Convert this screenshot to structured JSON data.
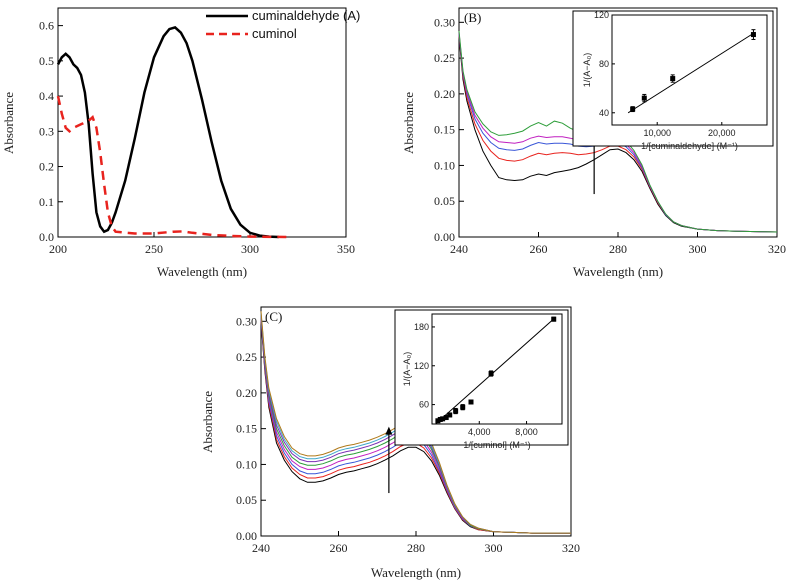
{
  "chart_data": [
    {
      "panel": "A",
      "type": "line",
      "xlabel": "Wavelength (nm)",
      "ylabel": "Absorbance",
      "xlim": [
        200,
        350
      ],
      "ylim": [
        0,
        0.65
      ],
      "xticks": [
        200,
        250,
        300,
        350
      ],
      "yticks": [
        0.0,
        0.1,
        0.2,
        0.3,
        0.4,
        0.5,
        0.6
      ],
      "legend_position": "top-right",
      "series": [
        {
          "name": "cuminaldehyde (A)",
          "color": "#000000",
          "style": "solid",
          "x": [
            200,
            202,
            204,
            206,
            208,
            210,
            212,
            214,
            216,
            218,
            220,
            222,
            224,
            226,
            228,
            230,
            235,
            240,
            245,
            250,
            255,
            258,
            261,
            264,
            267,
            270,
            275,
            280,
            285,
            290,
            295,
            300,
            305,
            310,
            315
          ],
          "y": [
            0.49,
            0.51,
            0.52,
            0.51,
            0.49,
            0.48,
            0.46,
            0.41,
            0.32,
            0.18,
            0.07,
            0.03,
            0.015,
            0.02,
            0.04,
            0.07,
            0.16,
            0.28,
            0.41,
            0.51,
            0.57,
            0.59,
            0.595,
            0.58,
            0.55,
            0.5,
            0.39,
            0.27,
            0.16,
            0.08,
            0.035,
            0.012,
            0.004,
            0.001,
            0.0
          ]
        },
        {
          "name": "cuminol",
          "color": "#e8231e",
          "style": "dashed",
          "x": [
            200,
            202,
            204,
            206,
            208,
            212,
            216,
            218,
            220,
            222,
            224,
            226,
            228,
            230,
            240,
            250,
            260,
            265,
            270,
            280,
            290,
            300,
            320
          ],
          "y": [
            0.4,
            0.35,
            0.31,
            0.3,
            0.31,
            0.32,
            0.33,
            0.34,
            0.31,
            0.24,
            0.15,
            0.07,
            0.03,
            0.015,
            0.01,
            0.01,
            0.015,
            0.016,
            0.012,
            0.006,
            0.003,
            0.001,
            0.0
          ]
        }
      ]
    },
    {
      "panel": "B",
      "type": "line",
      "xlabel": "Wavelength (nm)",
      "ylabel": "Absorbance",
      "xlim": [
        240,
        320
      ],
      "ylim": [
        0,
        0.32
      ],
      "xticks": [
        240,
        260,
        280,
        300,
        320
      ],
      "yticks": [
        0.0,
        0.05,
        0.1,
        0.15,
        0.2,
        0.25,
        0.3
      ],
      "x": [
        240,
        241,
        242,
        244,
        246,
        248,
        250,
        252,
        254,
        256,
        258,
        260,
        262,
        264,
        266,
        268,
        270,
        272,
        274,
        276,
        278,
        280,
        282,
        284,
        286,
        288,
        290,
        292,
        294,
        296,
        300,
        305,
        310,
        320
      ],
      "series": [
        {
          "color": "#000000",
          "y": [
            0.28,
            0.22,
            0.19,
            0.15,
            0.12,
            0.1,
            0.083,
            0.08,
            0.079,
            0.08,
            0.085,
            0.088,
            0.086,
            0.09,
            0.092,
            0.094,
            0.097,
            0.102,
            0.108,
            0.115,
            0.122,
            0.123,
            0.118,
            0.108,
            0.092,
            0.068,
            0.046,
            0.03,
            0.02,
            0.015,
            0.011,
            0.009,
            0.008,
            0.007
          ]
        },
        {
          "color": "#e8231e",
          "y": [
            0.282,
            0.225,
            0.195,
            0.158,
            0.135,
            0.12,
            0.11,
            0.107,
            0.106,
            0.108,
            0.113,
            0.117,
            0.115,
            0.117,
            0.118,
            0.117,
            0.115,
            0.116,
            0.118,
            0.122,
            0.127,
            0.127,
            0.122,
            0.112,
            0.095,
            0.07,
            0.048,
            0.031,
            0.021,
            0.016,
            0.011,
            0.009,
            0.008,
            0.007
          ]
        },
        {
          "color": "#3a57d8",
          "y": [
            0.284,
            0.228,
            0.2,
            0.165,
            0.145,
            0.132,
            0.124,
            0.122,
            0.121,
            0.123,
            0.128,
            0.132,
            0.13,
            0.131,
            0.131,
            0.13,
            0.127,
            0.126,
            0.127,
            0.129,
            0.133,
            0.132,
            0.126,
            0.115,
            0.097,
            0.071,
            0.049,
            0.031,
            0.021,
            0.016,
            0.011,
            0.009,
            0.008,
            0.007
          ]
        },
        {
          "color": "#c01fc0",
          "y": [
            0.286,
            0.23,
            0.203,
            0.17,
            0.152,
            0.14,
            0.133,
            0.132,
            0.131,
            0.133,
            0.138,
            0.141,
            0.139,
            0.14,
            0.14,
            0.138,
            0.135,
            0.134,
            0.134,
            0.136,
            0.139,
            0.137,
            0.13,
            0.118,
            0.099,
            0.072,
            0.049,
            0.032,
            0.021,
            0.016,
            0.011,
            0.009,
            0.008,
            0.007
          ]
        },
        {
          "color": "#2e9e3a",
          "y": [
            0.288,
            0.232,
            0.206,
            0.175,
            0.158,
            0.147,
            0.142,
            0.143,
            0.145,
            0.148,
            0.155,
            0.16,
            0.155,
            0.162,
            0.159,
            0.152,
            0.147,
            0.144,
            0.143,
            0.144,
            0.146,
            0.142,
            0.134,
            0.121,
            0.101,
            0.073,
            0.05,
            0.032,
            0.021,
            0.016,
            0.011,
            0.009,
            0.008,
            0.007
          ]
        }
      ],
      "annotation": {
        "type": "arrow-up",
        "x": 274,
        "y_from": 0.06,
        "y_to": 0.145
      },
      "inset": {
        "type": "scatter",
        "xlabel": "1/[cuminaldehyde] (M⁻¹)",
        "ylabel": "1/(A−A₀)",
        "xlim": [
          3000,
          27000
        ],
        "ylim": [
          30,
          120
        ],
        "xticks": [
          {
            "value": 10000,
            "label": "10,000"
          },
          {
            "value": 20000,
            "label": "20,000"
          }
        ],
        "yticks": [
          40,
          80,
          120
        ],
        "points": [
          {
            "x": 6200,
            "y": 43,
            "err": 2
          },
          {
            "x": 8000,
            "y": 52,
            "err": 3
          },
          {
            "x": 12400,
            "y": 68,
            "err": 3
          },
          {
            "x": 24900,
            "y": 104,
            "err": 4
          }
        ],
        "fit": {
          "x": [
            5500,
            25200
          ],
          "y": [
            40,
            106
          ]
        }
      }
    },
    {
      "panel": "C",
      "type": "line",
      "xlabel": "Wavelength (nm)",
      "ylabel": "Absorbance",
      "xlim": [
        240,
        320
      ],
      "ylim": [
        0,
        0.32
      ],
      "xticks": [
        240,
        260,
        280,
        300,
        320
      ],
      "yticks": [
        0.0,
        0.05,
        0.1,
        0.15,
        0.2,
        0.25,
        0.3
      ],
      "x": [
        240,
        241,
        242,
        244,
        246,
        248,
        250,
        252,
        254,
        256,
        258,
        260,
        262,
        264,
        266,
        268,
        270,
        272,
        274,
        276,
        278,
        280,
        282,
        284,
        286,
        288,
        290,
        292,
        294,
        296,
        300,
        305,
        310,
        320
      ],
      "series": [
        {
          "color": "#000000",
          "y": [
            0.3,
            0.23,
            0.18,
            0.13,
            0.106,
            0.09,
            0.08,
            0.075,
            0.075,
            0.077,
            0.081,
            0.086,
            0.089,
            0.091,
            0.094,
            0.097,
            0.101,
            0.106,
            0.112,
            0.119,
            0.124,
            0.124,
            0.118,
            0.105,
            0.085,
            0.06,
            0.038,
            0.022,
            0.013,
            0.009,
            0.006,
            0.005,
            0.004,
            0.004
          ]
        },
        {
          "color": "#e8231e",
          "y": [
            0.302,
            0.233,
            0.184,
            0.135,
            0.111,
            0.095,
            0.086,
            0.081,
            0.081,
            0.083,
            0.087,
            0.092,
            0.095,
            0.097,
            0.1,
            0.103,
            0.107,
            0.112,
            0.118,
            0.125,
            0.13,
            0.13,
            0.123,
            0.109,
            0.088,
            0.062,
            0.039,
            0.023,
            0.014,
            0.009,
            0.006,
            0.005,
            0.004,
            0.004
          ]
        },
        {
          "color": "#3a57d8",
          "y": [
            0.304,
            0.236,
            0.188,
            0.14,
            0.116,
            0.1,
            0.091,
            0.087,
            0.087,
            0.089,
            0.093,
            0.098,
            0.101,
            0.103,
            0.106,
            0.109,
            0.113,
            0.118,
            0.124,
            0.131,
            0.136,
            0.135,
            0.128,
            0.113,
            0.091,
            0.064,
            0.04,
            0.024,
            0.014,
            0.01,
            0.006,
            0.005,
            0.004,
            0.004
          ]
        },
        {
          "color": "#c01fc0",
          "y": [
            0.306,
            0.239,
            0.192,
            0.145,
            0.121,
            0.105,
            0.097,
            0.093,
            0.093,
            0.095,
            0.099,
            0.104,
            0.107,
            0.109,
            0.112,
            0.115,
            0.119,
            0.124,
            0.13,
            0.137,
            0.142,
            0.141,
            0.133,
            0.117,
            0.094,
            0.066,
            0.041,
            0.025,
            0.015,
            0.01,
            0.006,
            0.005,
            0.004,
            0.004
          ]
        },
        {
          "color": "#2e9e3a",
          "y": [
            0.308,
            0.242,
            0.196,
            0.15,
            0.126,
            0.11,
            0.102,
            0.099,
            0.099,
            0.101,
            0.105,
            0.11,
            0.113,
            0.115,
            0.118,
            0.121,
            0.125,
            0.13,
            0.136,
            0.143,
            0.148,
            0.146,
            0.138,
            0.121,
            0.097,
            0.068,
            0.042,
            0.026,
            0.015,
            0.01,
            0.006,
            0.005,
            0.004,
            0.004
          ]
        },
        {
          "color": "#7a2fb5",
          "y": [
            0.31,
            0.245,
            0.2,
            0.155,
            0.131,
            0.115,
            0.107,
            0.104,
            0.104,
            0.106,
            0.11,
            0.115,
            0.118,
            0.12,
            0.123,
            0.126,
            0.13,
            0.135,
            0.141,
            0.148,
            0.153,
            0.151,
            0.142,
            0.124,
            0.099,
            0.069,
            0.043,
            0.026,
            0.016,
            0.011,
            0.006,
            0.005,
            0.004,
            0.004
          ]
        },
        {
          "color": "#3fa7c9",
          "y": [
            0.312,
            0.248,
            0.204,
            0.16,
            0.135,
            0.119,
            0.111,
            0.108,
            0.108,
            0.11,
            0.114,
            0.119,
            0.122,
            0.124,
            0.127,
            0.13,
            0.134,
            0.139,
            0.145,
            0.152,
            0.157,
            0.155,
            0.146,
            0.127,
            0.101,
            0.07,
            0.044,
            0.027,
            0.016,
            0.011,
            0.006,
            0.005,
            0.004,
            0.004
          ]
        },
        {
          "color": "#b07a1a",
          "y": [
            0.314,
            0.25,
            0.207,
            0.164,
            0.139,
            0.123,
            0.115,
            0.112,
            0.112,
            0.114,
            0.118,
            0.123,
            0.126,
            0.128,
            0.131,
            0.134,
            0.138,
            0.143,
            0.149,
            0.156,
            0.161,
            0.159,
            0.149,
            0.13,
            0.103,
            0.071,
            0.045,
            0.027,
            0.016,
            0.011,
            0.006,
            0.005,
            0.004,
            0.004
          ]
        }
      ],
      "annotation": {
        "type": "arrow-up",
        "x": 273,
        "y_from": 0.06,
        "y_to": 0.15
      },
      "inset": {
        "type": "scatter",
        "xlabel": "1/[cuminol] (M⁻¹)",
        "ylabel": "1/(A−A₀)",
        "xlim": [
          0,
          11000
        ],
        "ylim": [
          30,
          200
        ],
        "xticks": [
          {
            "value": 4000,
            "label": "4,000"
          },
          {
            "value": 8000,
            "label": "8,000"
          }
        ],
        "yticks": [
          60,
          120,
          180
        ],
        "points": [
          {
            "x": 500,
            "y": 35,
            "err": 2
          },
          {
            "x": 700,
            "y": 37,
            "err": 2
          },
          {
            "x": 900,
            "y": 38,
            "err": 2
          },
          {
            "x": 1200,
            "y": 40,
            "err": 2
          },
          {
            "x": 1500,
            "y": 44,
            "err": 3
          },
          {
            "x": 2000,
            "y": 50,
            "err": 4
          },
          {
            "x": 2600,
            "y": 56,
            "err": 4
          },
          {
            "x": 3300,
            "y": 64,
            "err": 3
          },
          {
            "x": 5000,
            "y": 108,
            "err": 4
          },
          {
            "x": 10300,
            "y": 192,
            "err": 3
          }
        ],
        "fit": {
          "x": [
            300,
            10400
          ],
          "y": [
            30,
            194
          ]
        }
      }
    }
  ]
}
